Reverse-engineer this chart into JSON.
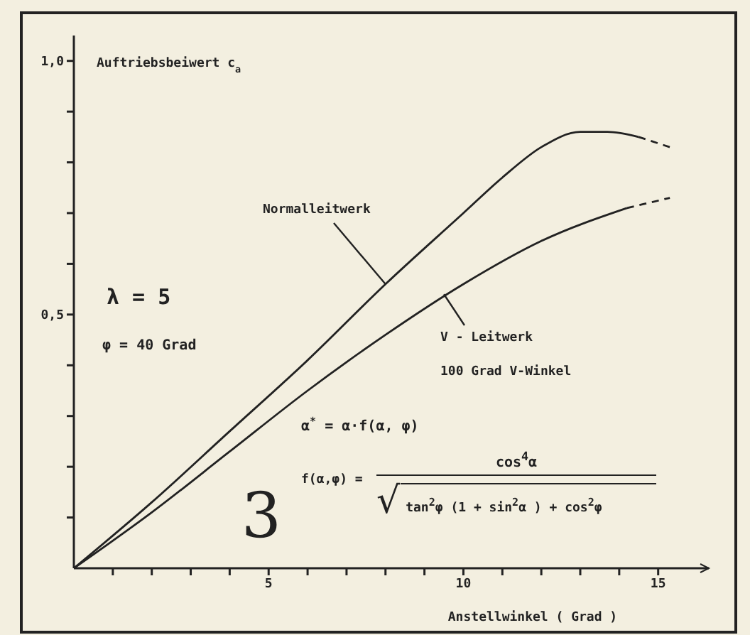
{
  "chart_data": {
    "type": "line",
    "ylabel": "Auftriebsbeiwert c$_{a}$",
    "xlabel": "Anstellwinkel ( Grad )",
    "xlim": [
      0,
      16.3
    ],
    "ylim": [
      0,
      1.05
    ],
    "xticks": [
      {
        "value": 1,
        "label": null
      },
      {
        "value": 2,
        "label": null
      },
      {
        "value": 3,
        "label": null
      },
      {
        "value": 4,
        "label": null
      },
      5,
      {
        "value": 6,
        "label": null
      },
      {
        "value": 7,
        "label": null
      },
      {
        "value": 8,
        "label": null
      },
      {
        "value": 9,
        "label": null
      },
      10,
      {
        "value": 11,
        "label": null
      },
      {
        "value": 12,
        "label": null
      },
      {
        "value": 13,
        "label": null
      },
      {
        "value": 14,
        "label": null
      },
      15
    ],
    "yticks": [
      {
        "value": 0.1,
        "label": null
      },
      {
        "value": 0.2,
        "label": null
      },
      {
        "value": 0.3,
        "label": null
      },
      {
        "value": 0.4,
        "label": null
      },
      {
        "value": 0.5,
        "label": "0,5"
      },
      {
        "value": 0.6,
        "label": null
      },
      {
        "value": 0.7,
        "label": null
      },
      {
        "value": 0.8,
        "label": null
      },
      {
        "value": 0.9,
        "label": null
      },
      {
        "value": 1,
        "label": "1,0"
      }
    ],
    "grid": false,
    "legend": false,
    "marker": "none",
    "line_style": "solid",
    "series": [
      {
        "color": "#222222",
        "x": [
          0,
          2,
          4,
          6,
          8,
          10,
          11,
          12,
          13,
          13.7,
          14.5
        ],
        "values": [
          0,
          0.13,
          0.27,
          0.41,
          0.56,
          0.7,
          0.77,
          0.83,
          0.86,
          0.86,
          0.85
        ]
      },
      {
        "color": "#222222",
        "line_style": "dashed",
        "x": [
          14.5,
          15.3
        ],
        "values": [
          0.85,
          0.83
        ]
      },
      {
        "color": "#222222",
        "x": [
          0,
          2,
          4,
          6,
          8,
          10,
          12,
          14.2
        ],
        "values": [
          0,
          0.11,
          0.23,
          0.35,
          0.46,
          0.56,
          0.645,
          0.71
        ]
      },
      {
        "color": "#222222",
        "line_style": "dashed",
        "x": [
          14.2,
          15.3
        ],
        "values": [
          0.71,
          0.73
        ]
      }
    ],
    "annotations": [
      "λ = 5",
      "φ = 40 Grad",
      "α$^{*}$ = α·f(α, φ)",
      "f(α,φ) =",
      "cos$^{4}$α",
      "√tan$^{2}$φ (1 +  sin$^{2}$α ) + cos$^{2}$φ",
      "3",
      "100 Grad V-Winkel",
      {
        "text": "Normalleitwerk",
        "x": 8,
        "y": 0.56
      },
      {
        "text": "V - Leitwerk",
        "x": 9.5,
        "y": 0.54
      }
    ]
  }
}
